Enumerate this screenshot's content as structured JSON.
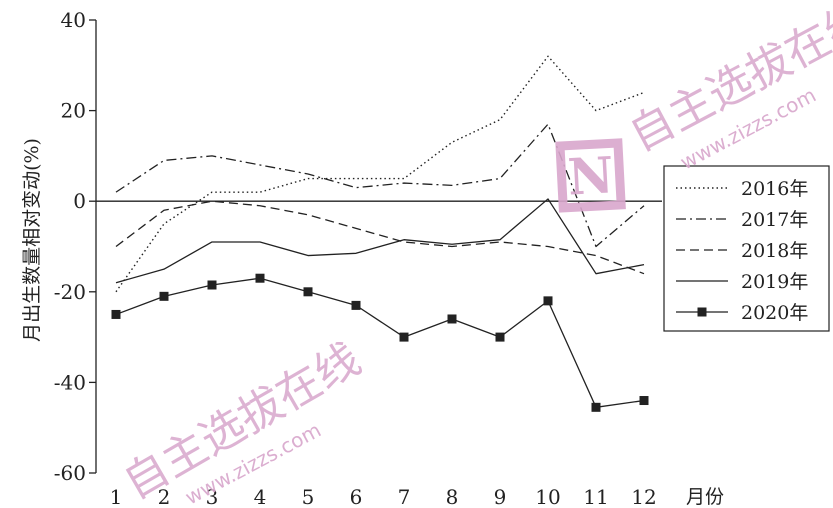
{
  "chart_data": {
    "type": "line",
    "x": [
      1,
      2,
      3,
      4,
      5,
      6,
      7,
      8,
      9,
      10,
      11,
      12
    ],
    "x_tick_labels": [
      "1",
      "2",
      "3",
      "4",
      "5",
      "6",
      "7",
      "8",
      "9",
      "10",
      "11",
      "12"
    ],
    "xlabel": "月份",
    "ylabel": "月出生数量相对变动(%)",
    "ylim": [
      -60,
      40
    ],
    "y_ticks": [
      40,
      20,
      0,
      -20,
      -40,
      -60
    ],
    "y_tick_labels": [
      "40",
      "20",
      "0",
      "-20",
      "-40",
      "-60"
    ],
    "grid": false,
    "legend_position": "right",
    "series": [
      {
        "name": "2016年",
        "style": "dotted",
        "marker": "none",
        "values": [
          -20,
          -5,
          2,
          2,
          5,
          5,
          5,
          13,
          18,
          32,
          20,
          24
        ]
      },
      {
        "name": "2017年",
        "style": "dashdot",
        "marker": "none",
        "values": [
          2,
          9,
          10,
          8,
          6,
          3,
          4,
          3.5,
          5,
          17,
          -10,
          -1
        ]
      },
      {
        "name": "2018年",
        "style": "dashed",
        "marker": "none",
        "values": [
          -10,
          -2,
          0,
          -1,
          -3,
          -6,
          -9,
          -10,
          -9,
          -10,
          -12,
          -16
        ]
      },
      {
        "name": "2019年",
        "style": "solid",
        "marker": "none",
        "values": [
          -18,
          -15,
          -9,
          -9,
          -12,
          -11.5,
          -8.5,
          -9.5,
          -8.5,
          0.5,
          -16,
          -14
        ]
      },
      {
        "name": "2020年",
        "style": "solid",
        "marker": "square",
        "values": [
          -25,
          -21,
          -18.5,
          -17,
          -20,
          -23,
          -30,
          -26,
          -30,
          -22,
          -45.5,
          -44
        ]
      }
    ]
  },
  "watermark": {
    "logo_letter": "N",
    "brand_text": "自主选拔在线",
    "url_text": "www.zizzs.com",
    "color": "#d8a6cc"
  }
}
